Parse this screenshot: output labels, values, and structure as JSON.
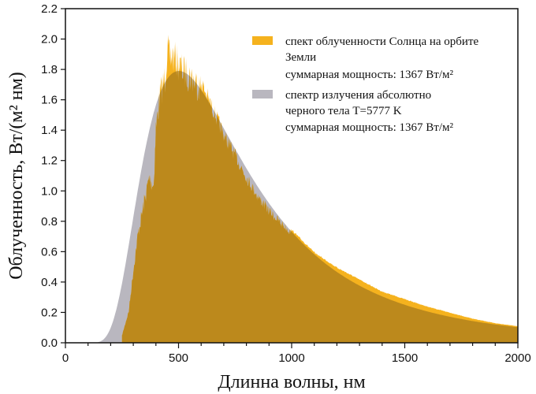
{
  "chart_data": {
    "type": "area",
    "title": "",
    "xlabel": "Длинна волны, нм",
    "ylabel": "Облученность, Вт/(м² нм)",
    "xlim": [
      0,
      2000
    ],
    "ylim": [
      0,
      2.2
    ],
    "xticks": [
      "0",
      "500",
      "1000",
      "1500",
      "2000"
    ],
    "yticks": [
      "0.0",
      "0.2",
      "0.4",
      "0.6",
      "0.8",
      "1.0",
      "1.2",
      "1.4",
      "1.6",
      "1.8",
      "2.0",
      "2.2"
    ],
    "grid": false,
    "legend_position": "top-right",
    "series": [
      {
        "name": "спект облученности Солнца на орбите Земли",
        "name_lines": [
          "спект облученности Солнца на орбите",
          "Земли",
          "суммарная мощность: 1367 Вт/м²"
        ],
        "color": "#F5B21E",
        "x": [
          250,
          280,
          300,
          320,
          350,
          370,
          390,
          400,
          420,
          440,
          450,
          460,
          480,
          500,
          520,
          550,
          600,
          650,
          700,
          750,
          800,
          850,
          900,
          950,
          1000,
          1100,
          1200,
          1300,
          1400,
          1500,
          1600,
          1700,
          1800,
          1900,
          2000
        ],
        "y": [
          0.05,
          0.22,
          0.5,
          0.75,
          1.0,
          1.15,
          1.1,
          1.5,
          1.75,
          1.85,
          2.05,
          2.0,
          2.0,
          1.95,
          1.9,
          1.87,
          1.78,
          1.6,
          1.42,
          1.28,
          1.13,
          1.0,
          0.9,
          0.82,
          0.75,
          0.6,
          0.5,
          0.42,
          0.34,
          0.29,
          0.24,
          0.2,
          0.16,
          0.13,
          0.11
        ]
      },
      {
        "name": "спектр излучения абсолютно черного тела T=5777 K",
        "name_lines": [
          "спектр излучения абсолютно",
          "черного тела T=5777 K",
          "суммарная мощность: 1367 Вт/м²"
        ],
        "color": "#B9B7BF",
        "temperature_K": 5777,
        "peak_value": 1.79
      }
    ],
    "overlap_color": "#BC891C"
  }
}
